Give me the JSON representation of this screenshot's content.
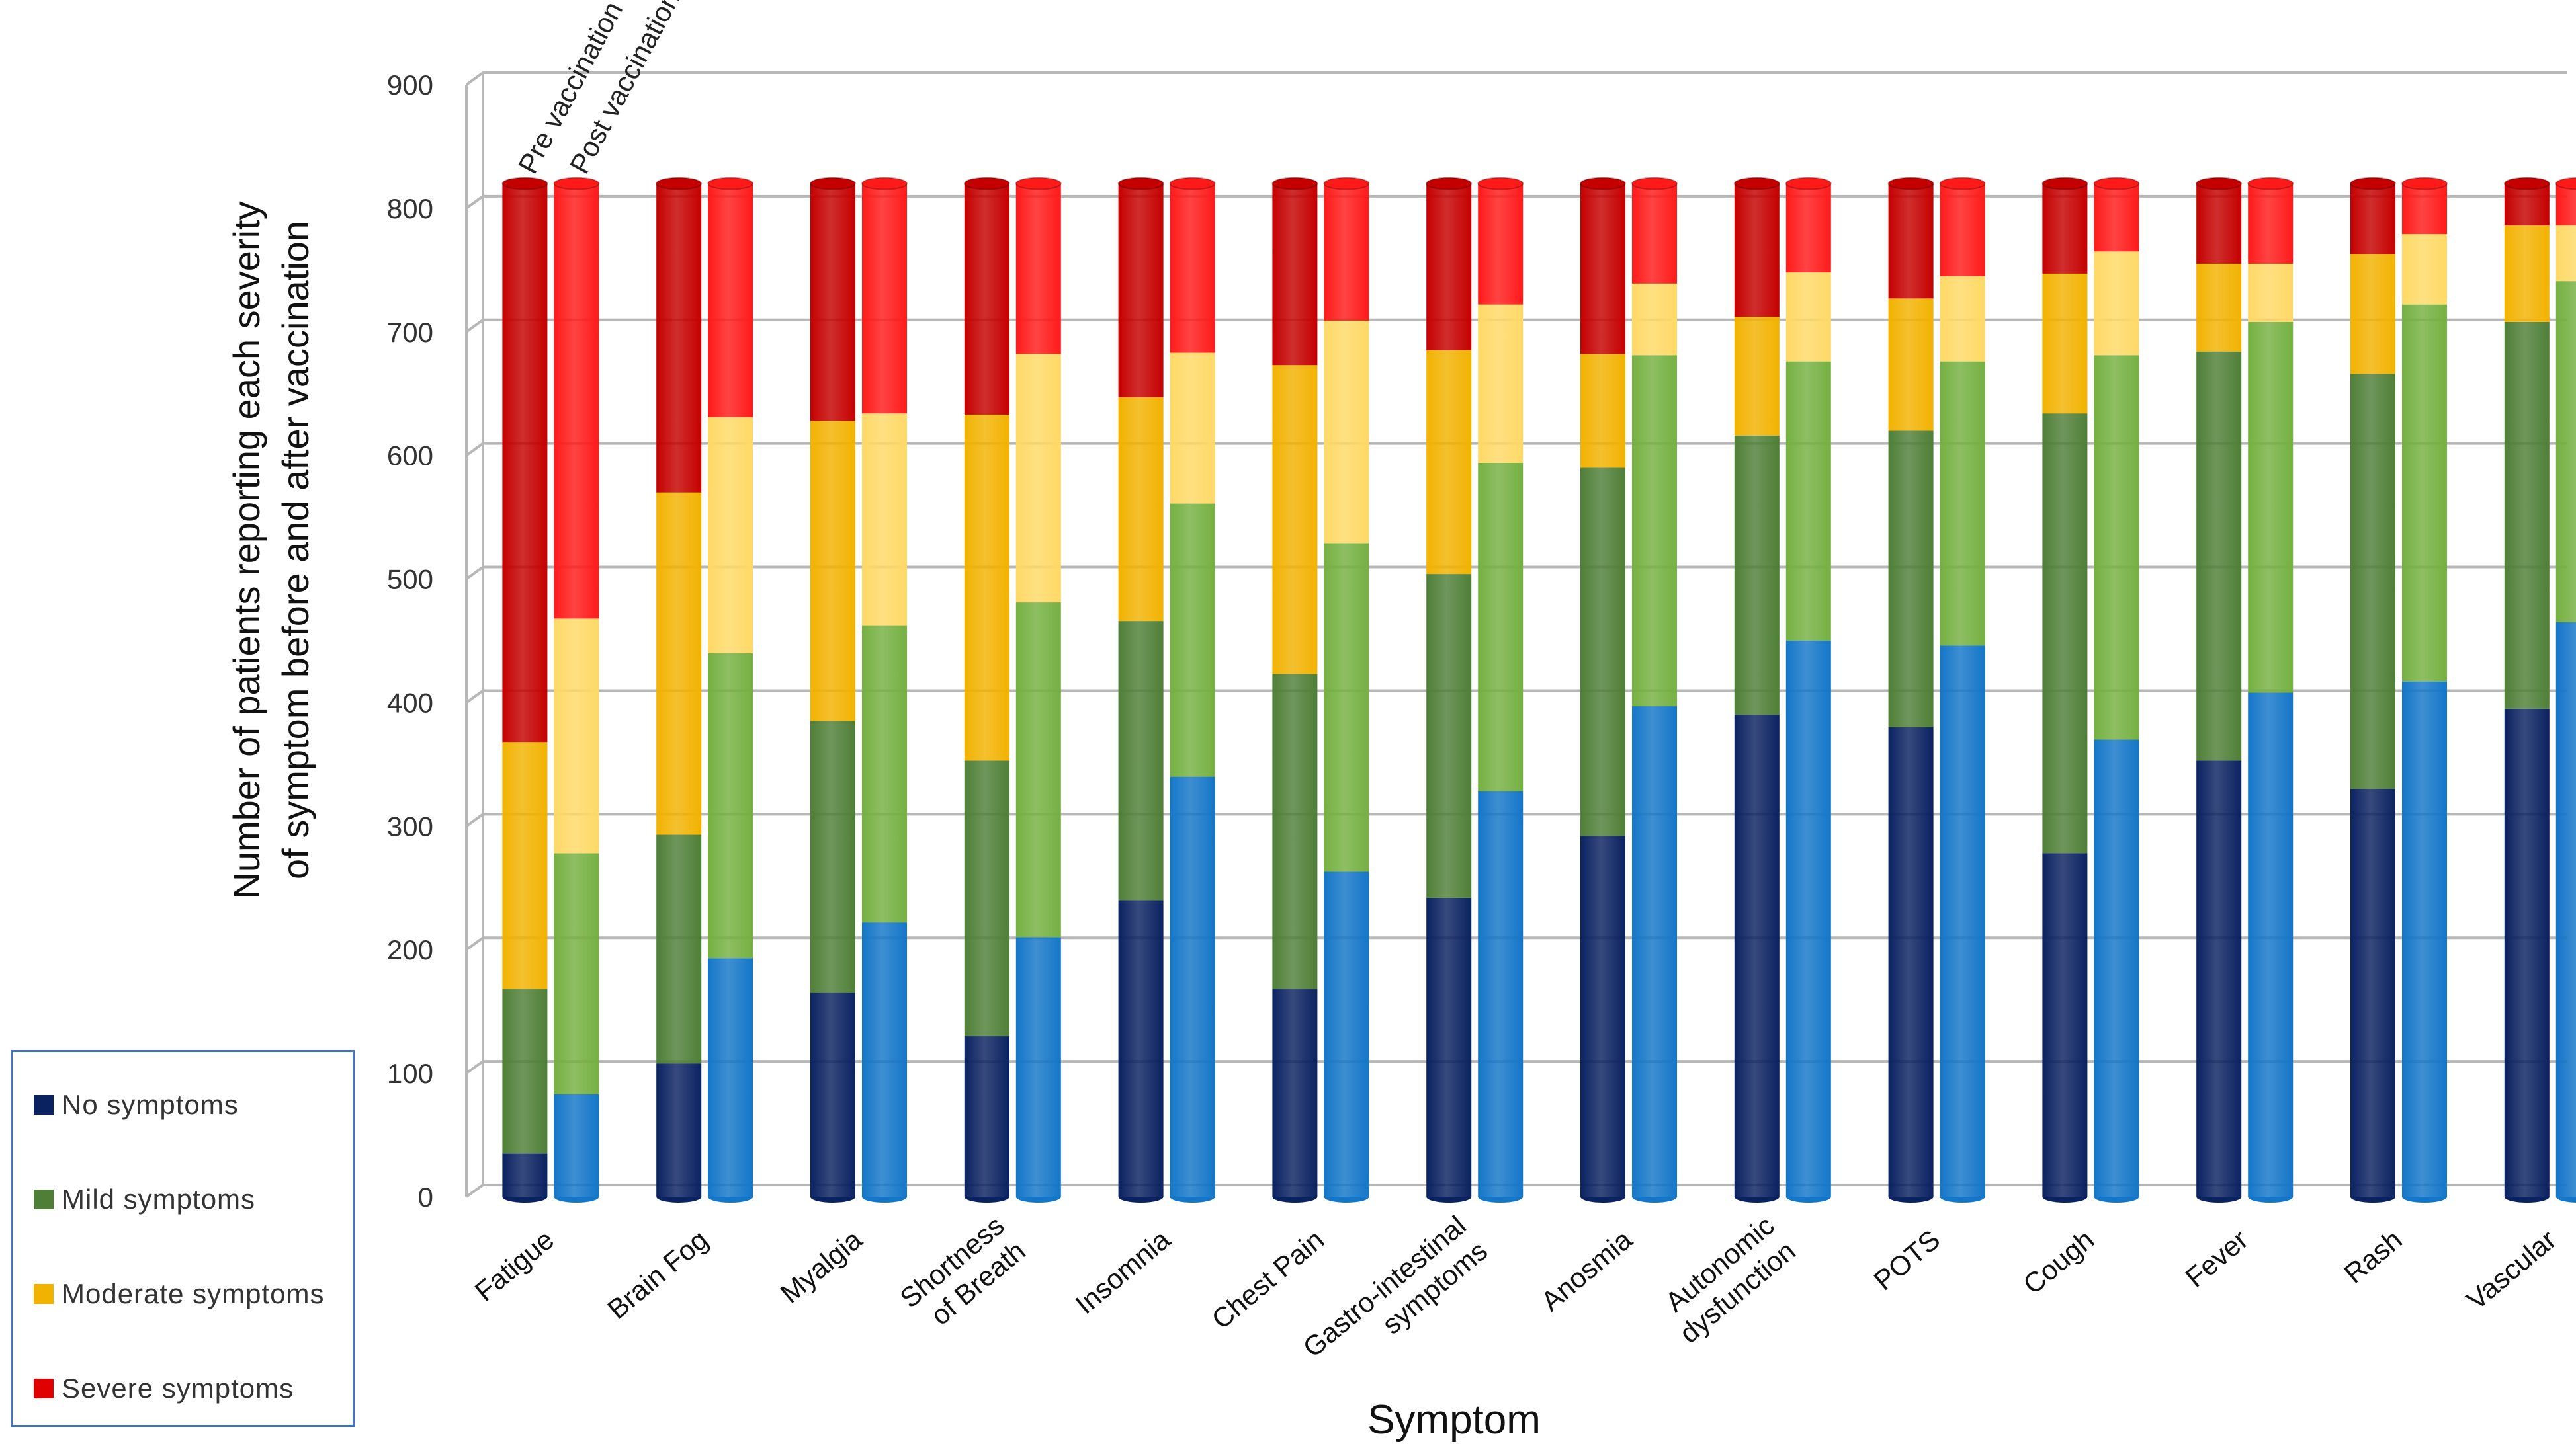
{
  "chart_data": {
    "type": "bar",
    "stacked": true,
    "grouped_pairs": true,
    "title": "",
    "xlabel": "Symptom",
    "ylabel_line1": "Number of patients reporting each severity",
    "ylabel_line2": "of symptom before and after vaccination",
    "ylim": [
      0,
      900
    ],
    "yticks": [
      0,
      100,
      200,
      300,
      400,
      500,
      600,
      700,
      800,
      900
    ],
    "pair_labels": [
      "Pre vaccination",
      "Post vaccination"
    ],
    "categories": [
      "Fatigue",
      "Brain Fog",
      "Myalgia",
      "Shortness of Breath",
      "Insomnia",
      "Chest Pain",
      "Gastro-intestinal symptoms",
      "Anosmia",
      "Autonomic dysfunction",
      "POTS",
      "Cough",
      "Fever",
      "Rash",
      "Vascular"
    ],
    "category_label_lines": [
      [
        "Fatigue"
      ],
      [
        "Brain Fog"
      ],
      [
        "Myalgia"
      ],
      [
        "Shortness",
        "of Breath"
      ],
      [
        "Insomnia"
      ],
      [
        "Chest Pain"
      ],
      [
        "Gastro-intestinal",
        "symptoms"
      ],
      [
        "Anosmia"
      ],
      [
        "Autonomic",
        "dysfunction"
      ],
      [
        "POTS"
      ],
      [
        "Cough"
      ],
      [
        "Fever"
      ],
      [
        "Rash"
      ],
      [
        "Vascular"
      ]
    ],
    "series": [
      {
        "name": "No symptoms",
        "pre": [
          35,
          108,
          165,
          130,
          240,
          168,
          242,
          292,
          390,
          380,
          278,
          353,
          330,
          395
        ],
        "post": [
          83,
          193,
          222,
          210,
          340,
          263,
          328,
          397,
          450,
          446,
          370,
          408,
          417,
          465
        ]
      },
      {
        "name": "Mild symptoms",
        "pre": [
          133,
          185,
          220,
          223,
          226,
          255,
          262,
          298,
          226,
          240,
          356,
          331,
          336,
          313
        ],
        "post": [
          195,
          247,
          240,
          271,
          221,
          266,
          266,
          284,
          226,
          230,
          311,
          300,
          305,
          276
        ]
      },
      {
        "name": "Moderate symptoms",
        "pre": [
          200,
          277,
          243,
          280,
          181,
          250,
          181,
          92,
          96,
          107,
          113,
          71,
          97,
          78
        ],
        "post": [
          190,
          191,
          172,
          201,
          122,
          180,
          128,
          58,
          72,
          69,
          84,
          47,
          57,
          45
        ]
      },
      {
        "name": "Severe symptoms",
        "pre": [
          452,
          250,
          192,
          187,
          173,
          147,
          135,
          138,
          108,
          93,
          73,
          65,
          57,
          34
        ],
        "post": [
          352,
          189,
          186,
          138,
          137,
          111,
          98,
          81,
          72,
          75,
          55,
          65,
          41,
          34
        ]
      }
    ],
    "legend": [
      "No symptoms",
      "Mild symptoms",
      "Moderate symptoms",
      "Severe symptoms"
    ],
    "legend_position": "bottom-left"
  },
  "colors": {
    "pre": [
      "#0b2261",
      "#4f7f37",
      "#f2b200",
      "#c50000"
    ],
    "post": [
      "#1476c8",
      "#75b041",
      "#ffd966",
      "#ff1a1a"
    ],
    "grid": "#b7b7b7"
  }
}
